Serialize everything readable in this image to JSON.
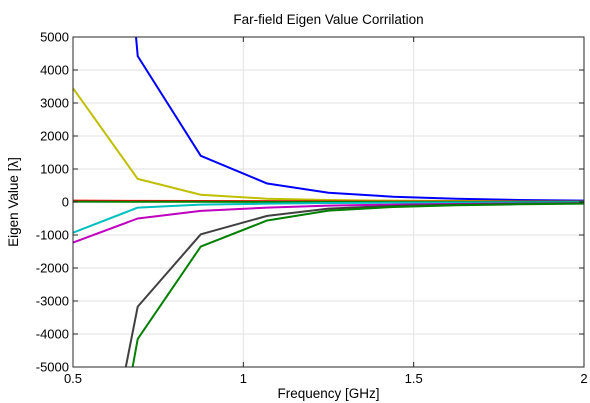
{
  "chart_data": {
    "type": "line",
    "title": "Far-field Eigen Value Corrilation",
    "xlabel": "Frequency [GHz]",
    "ylabel": "Eigen Value [λ]",
    "xlim": [
      0.5,
      2
    ],
    "ylim": [
      -5000,
      5000
    ],
    "x_ticks": [
      0.5,
      1,
      1.5,
      2
    ],
    "x_tick_labels": [
      "0.5",
      "1",
      "1.5",
      "2"
    ],
    "y_ticks": [
      -5000,
      -4000,
      -3000,
      -2000,
      -1000,
      0,
      1000,
      2000,
      3000,
      4000,
      5000
    ],
    "y_tick_labels": [
      "-5000",
      "-4000",
      "-3000",
      "-2000",
      "-1000",
      "0",
      "1000",
      "2000",
      "3000",
      "4000",
      "5000"
    ],
    "grid": true,
    "series": [
      {
        "color": "#0000ff",
        "x": [
          0.685,
          0.69,
          0.875,
          1.07,
          1.25,
          1.44,
          1.625,
          1.81,
          2.0
        ],
        "y": [
          5000,
          4420,
          1400,
          560,
          280,
          160,
          100,
          60,
          40
        ]
      },
      {
        "color": "#bfbf00",
        "x": [
          0.5,
          0.69,
          0.875,
          1.07,
          1.25,
          1.44,
          1.625,
          1.81,
          2.0
        ],
        "y": [
          3450,
          700,
          220,
          100,
          60,
          40,
          30,
          20,
          15
        ]
      },
      {
        "color": "#ff0000",
        "x": [
          0.5,
          0.69,
          0.875,
          1.07,
          1.25,
          1.44,
          1.625,
          1.81,
          2.0
        ],
        "y": [
          40,
          35,
          30,
          25,
          20,
          15,
          12,
          10,
          8
        ]
      },
      {
        "color": "#008000",
        "x": [
          0.5,
          0.69,
          0.875,
          1.07,
          1.25,
          1.44,
          1.625,
          1.81,
          2.0
        ],
        "y": [
          10,
          8,
          6,
          5,
          4,
          3,
          3,
          2,
          2
        ]
      },
      {
        "color": "#00bfbf",
        "x": [
          0.5,
          0.69,
          0.875,
          1.07,
          1.25,
          1.44,
          1.625,
          1.81,
          2.0
        ],
        "y": [
          -930,
          -170,
          -80,
          -50,
          -30,
          -20,
          -15,
          -10,
          -8
        ]
      },
      {
        "color": "#bf00bf",
        "x": [
          0.5,
          0.69,
          0.875,
          1.07,
          1.25,
          1.44,
          1.625,
          1.81,
          2.0
        ],
        "y": [
          -1230,
          -500,
          -270,
          -170,
          -110,
          -80,
          -60,
          -45,
          -35
        ]
      },
      {
        "color": "#404040",
        "x": [
          0.655,
          0.69,
          0.875,
          1.07,
          1.25,
          1.44,
          1.625,
          1.81,
          2.0
        ],
        "y": [
          -5000,
          -3170,
          -980,
          -420,
          -200,
          -120,
          -80,
          -55,
          -40
        ]
      },
      {
        "color": "#008000",
        "x": [
          0.675,
          0.69,
          0.875,
          1.07,
          1.25,
          1.44,
          1.625,
          1.81,
          2.0
        ],
        "y": [
          -5000,
          -4150,
          -1350,
          -560,
          -260,
          -150,
          -100,
          -70,
          -50
        ]
      }
    ]
  }
}
